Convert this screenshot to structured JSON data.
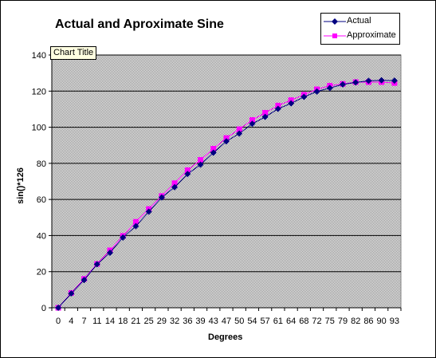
{
  "chart_data": {
    "type": "line",
    "title": "Actual and Aproximate Sine",
    "xlabel": "Degrees",
    "ylabel": "sin()*126",
    "categories": [
      "0",
      "4",
      "7",
      "11",
      "14",
      "18",
      "21",
      "25",
      "29",
      "32",
      "36",
      "39",
      "43",
      "47",
      "50",
      "54",
      "57",
      "61",
      "64",
      "68",
      "72",
      "75",
      "79",
      "82",
      "86",
      "90",
      "93"
    ],
    "ylim": [
      0,
      140
    ],
    "yticks": [
      0,
      20,
      40,
      60,
      80,
      100,
      120,
      140
    ],
    "grid": true,
    "legend_position": "top-right",
    "series": [
      {
        "name": "Actual",
        "color": "#000080",
        "marker": "diamond",
        "values": [
          0,
          7.9,
          15.4,
          24.1,
          30.5,
          38.9,
          45.2,
          53.2,
          61.1,
          66.8,
          74.1,
          79.3,
          85.9,
          92.2,
          96.5,
          101.9,
          105.7,
          110.2,
          113.2,
          116.8,
          119.8,
          121.7,
          123.7,
          124.8,
          125.7,
          126.0,
          125.8
        ]
      },
      {
        "name": "Approximate",
        "color": "#ff00ff",
        "marker": "square",
        "values": [
          0,
          8.2,
          16.0,
          24.3,
          31.8,
          39.8,
          47.6,
          54.7,
          61.9,
          69.0,
          76.2,
          81.9,
          88.1,
          94.0,
          98.9,
          104.0,
          108.0,
          112.0,
          115.0,
          118.0,
          121.0,
          123.0,
          124.0,
          125.0,
          125.0,
          125.0,
          124.5
        ]
      }
    ]
  },
  "tooltip": {
    "text": "Chart Title"
  },
  "colors": {
    "plot_background": "#c0c0c0",
    "grid_line": "#000000"
  }
}
